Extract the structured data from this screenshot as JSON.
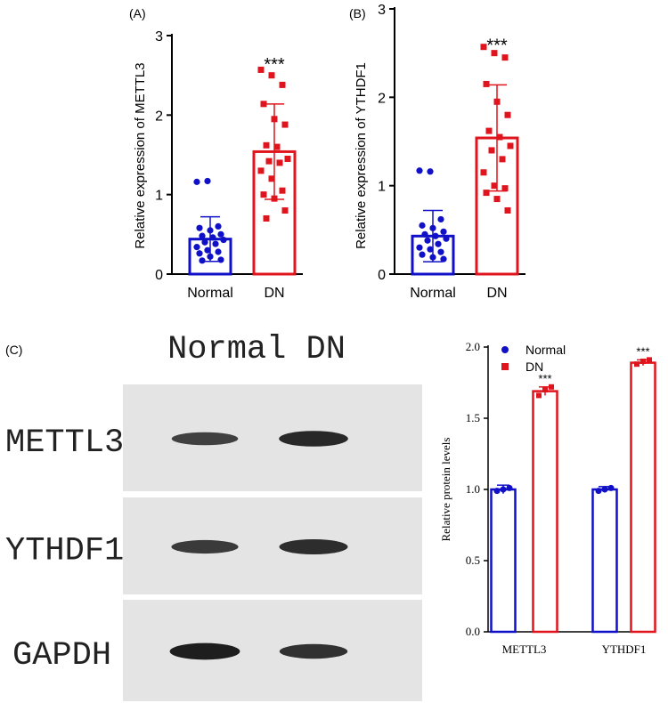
{
  "colors": {
    "normal": "#1010c8",
    "dn": "#e0141c",
    "axis": "#000000",
    "blot_bg": "#e4e4e4",
    "band": "#151515"
  },
  "chart_data": [
    {
      "panel": "(A)",
      "type": "bar",
      "ylabel": "Relative expression of METTL3",
      "ylim": [
        0,
        3
      ],
      "yticks": [
        "0",
        "1",
        "2",
        "3"
      ],
      "categories": [
        "Normal",
        "DN"
      ],
      "values": [
        0.44,
        1.54
      ],
      "error": [
        0.28,
        0.6
      ],
      "significance": "***",
      "points": [
        [
          1.16,
          1.17,
          0.6,
          0.58,
          0.55,
          0.5,
          0.48,
          0.46,
          0.43,
          0.4,
          0.38,
          0.34,
          0.3,
          0.28,
          0.26,
          0.22,
          0.18,
          0.17
        ],
        [
          2.57,
          2.5,
          2.38,
          2.14,
          1.95,
          1.88,
          1.62,
          1.6,
          1.45,
          1.42,
          1.4,
          1.3,
          1.2,
          1.05,
          1.0,
          0.95,
          0.8,
          0.7
        ]
      ]
    },
    {
      "panel": "(B)",
      "type": "bar",
      "ylabel": "Relative expression of YTHDF1",
      "ylim": [
        0,
        3
      ],
      "yticks": [
        "0",
        "1",
        "2",
        "3"
      ],
      "categories": [
        "Normal",
        "DN"
      ],
      "values": [
        0.43,
        1.54
      ],
      "error": [
        0.29,
        0.6
      ],
      "significance": "***",
      "points": [
        [
          1.17,
          1.16,
          0.62,
          0.55,
          0.52,
          0.48,
          0.45,
          0.43,
          0.4,
          0.38,
          0.34,
          0.3,
          0.28,
          0.25,
          0.22,
          0.19,
          0.17
        ],
        [
          2.57,
          2.5,
          2.45,
          2.15,
          1.95,
          1.8,
          1.62,
          1.55,
          1.45,
          1.4,
          1.3,
          1.15,
          1.0,
          0.97,
          0.92,
          0.85,
          0.72
        ]
      ]
    },
    {
      "panel": "(C)",
      "type": "bar",
      "ylabel": "Relative protein levels",
      "ylim": [
        0,
        2
      ],
      "yticks": [
        "0.0",
        "0.5",
        "1.0",
        "1.5",
        "2.0"
      ],
      "categories": [
        "METTL3",
        "YTHDF1"
      ],
      "series": [
        {
          "name": "Normal",
          "values": [
            1.0,
            1.0
          ],
          "error": [
            0.03,
            0.02
          ],
          "points": [
            [
              0.99,
              1.0,
              1.01
            ],
            [
              0.99,
              1.0,
              1.01
            ]
          ]
        },
        {
          "name": "DN",
          "values": [
            1.69,
            1.89
          ],
          "error": [
            0.03,
            0.02
          ],
          "points": [
            [
              1.66,
              1.7,
              1.72
            ],
            [
              1.88,
              1.9,
              1.91
            ]
          ]
        }
      ],
      "significance": [
        "***",
        "***"
      ]
    }
  ],
  "blot": {
    "header": "Normal DN",
    "rows": [
      {
        "label": "METTL3",
        "bands": [
          0.55,
          0.8
        ]
      },
      {
        "label": "YTHDF1",
        "bands": [
          0.6,
          0.75
        ]
      },
      {
        "label": "GAPDH",
        "bands": [
          0.9,
          0.7
        ]
      }
    ]
  }
}
